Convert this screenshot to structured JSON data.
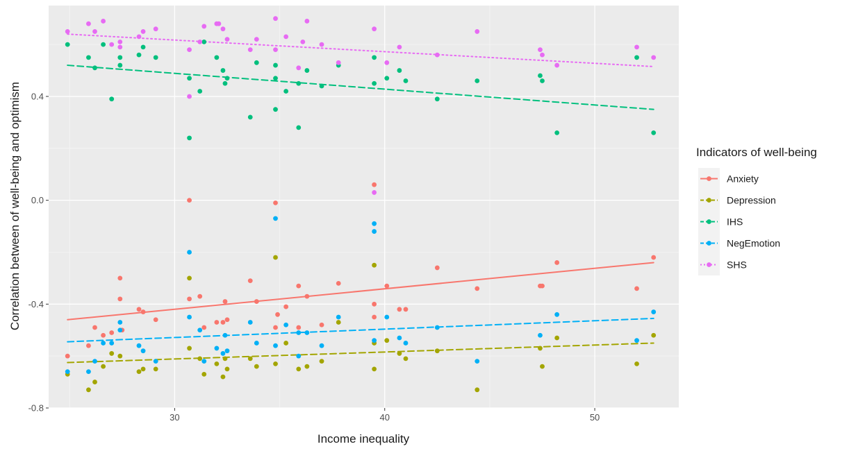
{
  "chart_data": {
    "type": "scatter",
    "xlabel": "Income inequality",
    "ylabel": "Correlation between of well-being and optimism",
    "xlim": [
      24.0,
      54.0
    ],
    "ylim": [
      -0.8,
      0.75
    ],
    "x_ticks": [
      30,
      40,
      50
    ],
    "x_tick_labels": [
      "30",
      "40",
      "50"
    ],
    "y_ticks": [
      -0.8,
      -0.4,
      0.0,
      0.4
    ],
    "y_tick_labels": [
      "-0.8",
      "-0.4",
      "0.0",
      "0.4"
    ],
    "grid": true,
    "legend": {
      "title": "Indicators of well-being",
      "position": "right"
    },
    "series": [
      {
        "name": "Anxiety",
        "color": "#F8766D",
        "line_style": "solid",
        "trend": [
          [
            24.9,
            -0.46
          ],
          [
            52.8,
            -0.24
          ]
        ],
        "x": [
          24.9,
          25.9,
          26.2,
          26.6,
          27.0,
          27.4,
          27.4,
          27.5,
          28.3,
          28.5,
          29.1,
          30.7,
          30.7,
          31.2,
          31.4,
          32.0,
          32.3,
          32.4,
          32.5,
          33.6,
          33.9,
          34.8,
          34.9,
          34.8,
          35.3,
          35.9,
          35.9,
          36.3,
          37.0,
          37.8,
          39.5,
          39.5,
          39.5,
          40.1,
          40.7,
          41.0,
          42.5,
          44.4,
          47.4,
          47.5,
          48.2,
          52.0,
          52.8
        ],
        "y": [
          -0.6,
          -0.56,
          -0.49,
          -0.52,
          -0.51,
          -0.3,
          -0.38,
          -0.5,
          -0.42,
          -0.43,
          -0.46,
          0.0,
          -0.38,
          -0.37,
          -0.49,
          -0.47,
          -0.47,
          -0.39,
          -0.46,
          -0.31,
          -0.39,
          -0.01,
          -0.44,
          -0.49,
          -0.41,
          -0.33,
          -0.49,
          -0.37,
          -0.48,
          -0.32,
          0.06,
          -0.4,
          -0.45,
          -0.33,
          -0.42,
          -0.42,
          -0.26,
          -0.34,
          -0.33,
          -0.33,
          -0.24,
          -0.34,
          -0.22
        ]
      },
      {
        "name": "Depression",
        "color": "#A3A500",
        "line_style": "dashed",
        "trend": [
          [
            24.9,
            -0.625
          ],
          [
            52.8,
            -0.55
          ]
        ],
        "x": [
          24.9,
          25.9,
          26.2,
          26.6,
          27.0,
          27.4,
          28.3,
          28.5,
          29.1,
          30.7,
          30.7,
          31.2,
          31.4,
          32.0,
          32.3,
          32.4,
          32.5,
          33.6,
          33.9,
          34.8,
          34.8,
          35.3,
          35.9,
          36.3,
          37.0,
          37.8,
          39.5,
          39.5,
          39.5,
          40.1,
          40.7,
          41.0,
          42.5,
          44.4,
          47.4,
          47.5,
          48.2,
          52.0,
          52.8
        ],
        "y": [
          -0.67,
          -0.73,
          -0.7,
          -0.64,
          -0.59,
          -0.6,
          -0.66,
          -0.65,
          -0.65,
          -0.3,
          -0.57,
          -0.61,
          -0.67,
          -0.63,
          -0.68,
          -0.61,
          -0.65,
          -0.61,
          -0.64,
          -0.22,
          -0.63,
          -0.55,
          -0.65,
          -0.64,
          -0.62,
          -0.47,
          -0.25,
          -0.55,
          -0.65,
          -0.54,
          -0.59,
          -0.61,
          -0.58,
          -0.73,
          -0.57,
          -0.64,
          -0.53,
          -0.63,
          -0.52
        ]
      },
      {
        "name": "IHS",
        "color": "#00BF7D",
        "line_style": "dashed",
        "trend": [
          [
            24.9,
            0.52
          ],
          [
            52.8,
            0.35
          ]
        ],
        "x": [
          24.9,
          25.9,
          26.2,
          26.6,
          27.0,
          27.4,
          27.4,
          28.3,
          28.5,
          29.1,
          30.7,
          30.7,
          31.2,
          31.4,
          32.0,
          32.3,
          32.4,
          32.5,
          33.6,
          33.9,
          34.8,
          34.8,
          34.8,
          35.3,
          35.9,
          35.9,
          36.3,
          37.0,
          37.8,
          39.5,
          39.5,
          40.1,
          40.7,
          41.0,
          42.5,
          44.4,
          47.4,
          47.5,
          48.2,
          52.0,
          52.8
        ],
        "y": [
          0.6,
          0.55,
          0.51,
          0.6,
          0.39,
          0.52,
          0.55,
          0.56,
          0.59,
          0.55,
          0.47,
          0.24,
          0.42,
          0.61,
          0.55,
          0.5,
          0.45,
          0.47,
          0.32,
          0.53,
          0.52,
          0.47,
          0.35,
          0.42,
          0.45,
          0.28,
          0.5,
          0.44,
          0.52,
          0.55,
          0.45,
          0.47,
          0.5,
          0.46,
          0.39,
          0.46,
          0.48,
          0.46,
          0.26,
          0.55,
          0.26
        ]
      },
      {
        "name": "NegEmotion",
        "color": "#00B0F6",
        "line_style": "dashed",
        "trend": [
          [
            24.9,
            -0.545
          ],
          [
            52.8,
            -0.455
          ]
        ],
        "x": [
          24.9,
          25.9,
          26.2,
          26.6,
          27.0,
          27.4,
          27.4,
          28.3,
          28.5,
          29.1,
          30.7,
          30.7,
          31.2,
          31.4,
          32.0,
          32.3,
          32.4,
          32.5,
          33.6,
          33.9,
          34.8,
          34.8,
          35.3,
          35.9,
          35.9,
          36.3,
          37.0,
          37.8,
          39.5,
          39.5,
          39.5,
          40.1,
          40.7,
          41.0,
          42.5,
          44.4,
          47.4,
          48.2,
          52.0,
          52.8
        ],
        "y": [
          -0.66,
          -0.66,
          -0.62,
          -0.55,
          -0.55,
          -0.47,
          -0.5,
          -0.56,
          -0.58,
          -0.62,
          -0.2,
          -0.45,
          -0.5,
          -0.62,
          -0.57,
          -0.59,
          -0.52,
          -0.58,
          -0.47,
          -0.55,
          -0.07,
          -0.56,
          -0.48,
          -0.51,
          -0.6,
          -0.51,
          -0.56,
          -0.45,
          -0.12,
          -0.09,
          -0.54,
          -0.45,
          -0.53,
          -0.55,
          -0.49,
          -0.62,
          -0.52,
          -0.44,
          -0.54,
          -0.43
        ]
      },
      {
        "name": "SHS",
        "color": "#E76BF3",
        "line_style": "dotted",
        "trend": [
          [
            24.9,
            0.64
          ],
          [
            52.8,
            0.515
          ]
        ],
        "x": [
          24.9,
          25.9,
          26.2,
          26.6,
          27.0,
          27.4,
          27.4,
          28.3,
          28.5,
          29.1,
          30.7,
          30.7,
          31.2,
          31.4,
          32.0,
          32.1,
          32.3,
          32.5,
          33.6,
          33.9,
          34.8,
          34.8,
          35.3,
          35.9,
          36.1,
          36.3,
          37.0,
          37.8,
          39.5,
          39.5,
          40.1,
          40.7,
          42.5,
          44.4,
          47.4,
          47.5,
          48.2,
          52.0,
          52.8
        ],
        "y": [
          0.65,
          0.68,
          0.65,
          0.69,
          0.6,
          0.61,
          0.59,
          0.63,
          0.65,
          0.66,
          0.58,
          0.4,
          0.61,
          0.67,
          0.68,
          0.68,
          0.66,
          0.62,
          0.58,
          0.62,
          0.7,
          0.58,
          0.63,
          0.51,
          0.61,
          0.69,
          0.6,
          0.53,
          0.66,
          0.03,
          0.53,
          0.59,
          0.56,
          0.65,
          0.58,
          0.56,
          0.52,
          0.59,
          0.55
        ]
      }
    ]
  }
}
